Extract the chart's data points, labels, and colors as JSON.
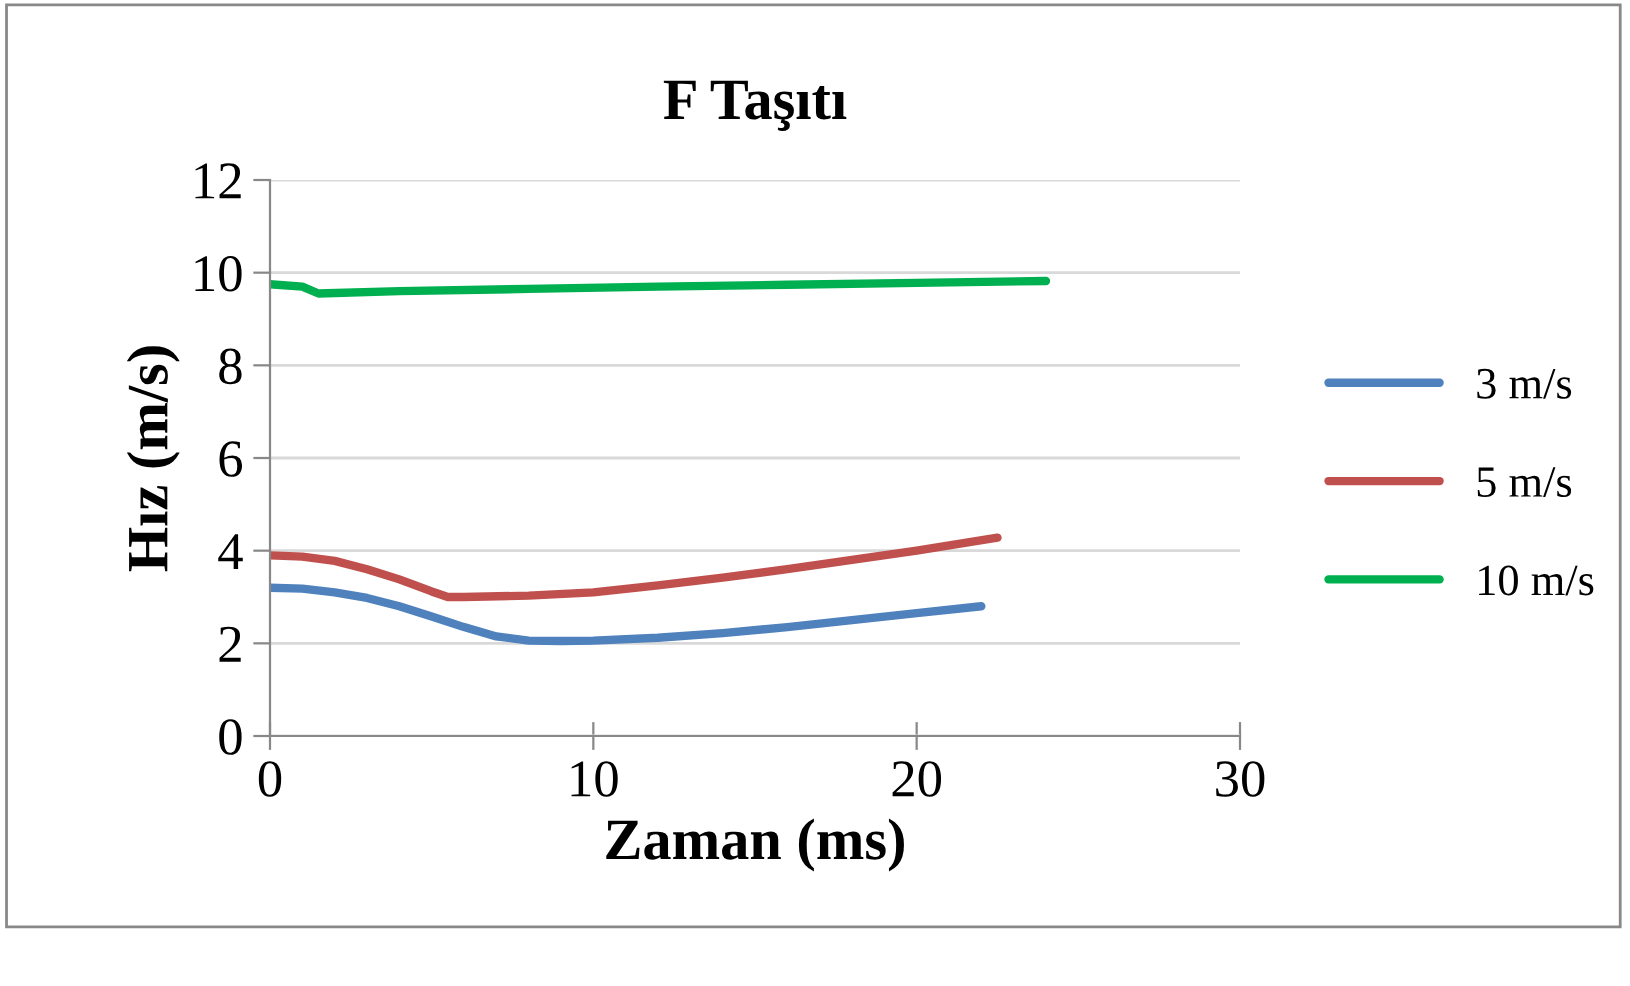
{
  "chart_data": {
    "type": "line",
    "title": "F Taşıtı",
    "xlabel": "Zaman (ms)",
    "ylabel": "Hız (m/s)",
    "xlim": [
      0,
      30
    ],
    "xticks": [
      0,
      10,
      20,
      30
    ],
    "ylim": [
      0,
      12
    ],
    "yticks": [
      0,
      2,
      4,
      6,
      8,
      10,
      12
    ],
    "grid": "y",
    "legend": "right",
    "marker": "none",
    "line_style": "solid",
    "series": [
      {
        "name": "3 m/s",
        "color": "#4f81bd",
        "x": [
          0,
          1,
          2,
          3,
          4,
          5,
          6,
          7,
          8,
          9,
          10,
          12,
          14,
          16,
          18,
          20,
          22
        ],
        "values": [
          3.2,
          3.18,
          3.1,
          2.98,
          2.8,
          2.58,
          2.35,
          2.15,
          2.06,
          2.05,
          2.06,
          2.12,
          2.22,
          2.35,
          2.5,
          2.65,
          2.8
        ]
      },
      {
        "name": "5 m/s",
        "color": "#c0504d",
        "x": [
          0,
          1,
          2,
          3,
          4,
          5,
          5.5,
          6,
          8,
          10,
          12,
          14,
          16,
          18,
          20,
          22.5
        ],
        "values": [
          3.9,
          3.87,
          3.78,
          3.6,
          3.38,
          3.12,
          3.0,
          3.0,
          3.03,
          3.1,
          3.25,
          3.42,
          3.6,
          3.8,
          4.0,
          4.28
        ]
      },
      {
        "name": "10 m/s",
        "color": "#00b050",
        "x": [
          0,
          1,
          1.5,
          4,
          8,
          12,
          16,
          20,
          24
        ],
        "values": [
          9.75,
          9.7,
          9.55,
          9.6,
          9.65,
          9.7,
          9.74,
          9.78,
          9.82
        ]
      }
    ]
  }
}
